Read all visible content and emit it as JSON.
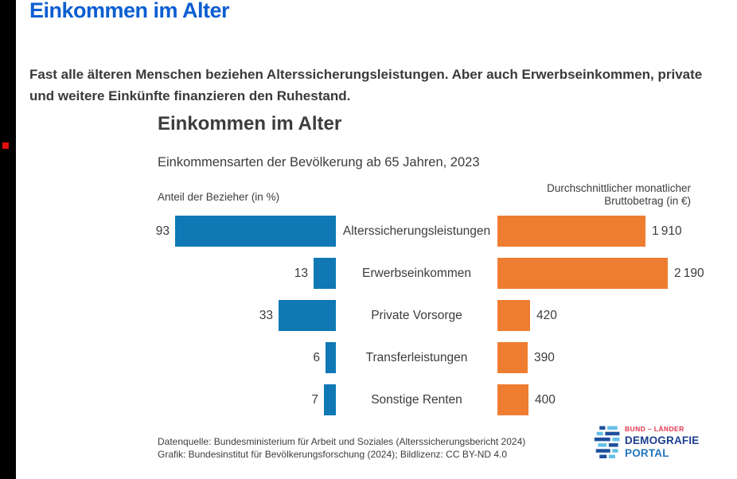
{
  "page": {
    "title": "Einkommen im Alter",
    "intro_line1": "Fast alle älteren Menschen beziehen Alterssicherungsleistungen. Aber auch Erwerbseinkommen, private",
    "intro_line2": "und weitere Einkünfte finanzieren den Ruhestand."
  },
  "chart_data": {
    "type": "bar",
    "title": "Einkommen im Alter",
    "subtitle": "Einkommensarten der Bevölkerung ab 65 Jahren, 2023",
    "categories": [
      "Alterssicherungsleistungen",
      "Erwerbseinkommen",
      "Private Vorsorge",
      "Transferleistungen",
      "Sonstige Renten"
    ],
    "series": [
      {
        "name": "Anteil der Bezieher (in %)",
        "values": [
          93,
          13,
          33,
          6,
          7
        ],
        "display": [
          "93",
          "13",
          "33",
          "6",
          "7"
        ],
        "color": "#0f78b5",
        "range": [
          0,
          100
        ],
        "orientation": "bars grow right-to-left"
      },
      {
        "name": "Durchschnittlicher monatlicher Bruttobetrag (in €)",
        "values": [
          1910,
          2190,
          420,
          390,
          400
        ],
        "display": [
          "1 910",
          "2 190",
          "420",
          "390",
          "400"
        ],
        "color": "#ef7d31",
        "range": [
          0,
          2300
        ],
        "orientation": "bars grow left-to-right"
      }
    ],
    "left_axis_label": "Anteil der Bezieher (in %)",
    "right_axis_label_line1": "Durchschnittlicher monatlicher",
    "right_axis_label_line2": "Bruttobetrag (in €)",
    "grid": false,
    "legend_position": "none",
    "source_line1": "Datenquelle: Bundesministerium für Arbeit und Soziales (Alterssicherungsbericht 2024)",
    "source_line2": "Grafik: Bundesinstitut für Bevölkerungsforschung (2024); Bildlizenz: CC BY-ND 4.0"
  },
  "logo": {
    "line1": "BUND – LÄNDER",
    "line2": "DEMOGRAFIE",
    "line3": "PORTAL"
  },
  "colors": {
    "page_title_blue": "#0b5ed1",
    "bar_blue": "#0f78b5",
    "bar_orange": "#ef7d31",
    "text_dark": "#3c3c3b",
    "logo_red": "#e2334f",
    "logo_navy": "#1d3e91",
    "logo_blue": "#2374bc",
    "edge_strip": "#000000",
    "red_marker": "#e01010"
  }
}
